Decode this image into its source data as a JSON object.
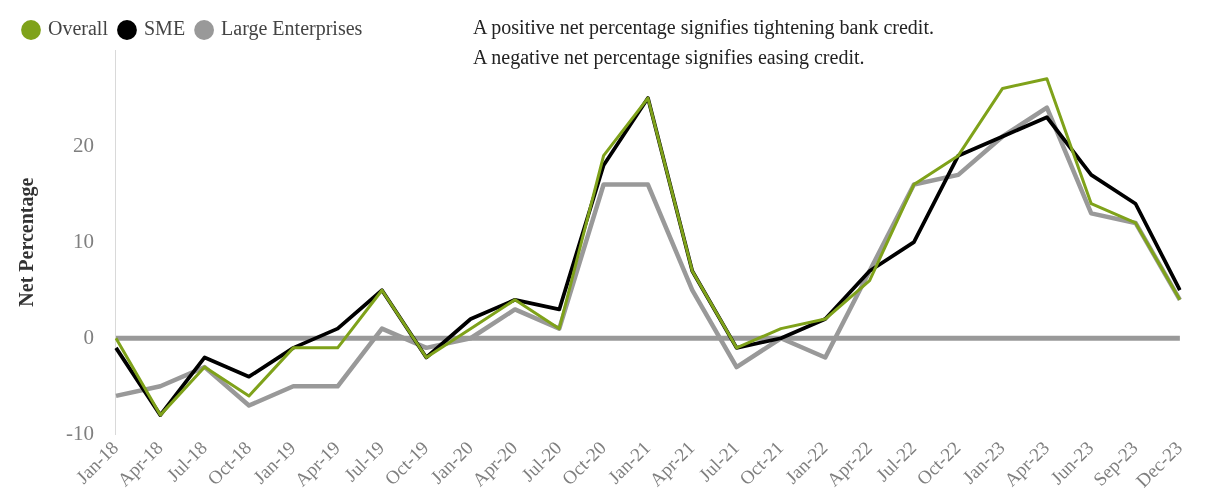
{
  "chart_data": {
    "type": "line",
    "ylabel": "Net Percentage",
    "annotations": [
      "A positive net percentage signifies tightening bank credit.",
      "A negative net percentage signifies easing credit."
    ],
    "categories": [
      "Jan-18",
      "Apr-18",
      "Jul-18",
      "Oct-18",
      "Jan-19",
      "Apr-19",
      "Jul-19",
      "Oct-19",
      "Jan-20",
      "Apr-20",
      "Jul-20",
      "Oct-20",
      "Jan-21",
      "Apr-21",
      "Jul-21",
      "Oct-21",
      "Jan-22",
      "Apr-22",
      "Jul-22",
      "Oct-22",
      "Jan-23",
      "Apr-23",
      "Jun-23",
      "Sep-23",
      "Dec-23"
    ],
    "series": [
      {
        "name": "Overall",
        "color": "#7fa21a",
        "values": [
          0,
          -8,
          -3,
          -6,
          -1,
          -1,
          5,
          -2,
          1,
          4,
          1,
          19,
          25,
          7,
          -1,
          1,
          2,
          6,
          16,
          19,
          26,
          27,
          14,
          12,
          4
        ]
      },
      {
        "name": "SME",
        "color": "#000000",
        "values": [
          -1,
          -8,
          -2,
          -4,
          -1,
          1,
          5,
          -2,
          2,
          4,
          3,
          18,
          25,
          7,
          -1,
          0,
          2,
          7,
          10,
          19,
          21,
          23,
          17,
          14,
          5
        ]
      },
      {
        "name": "Large Enterprises",
        "color": "#999999",
        "values": [
          -6,
          -5,
          -3,
          -7,
          -5,
          -5,
          1,
          -1,
          0,
          3,
          1,
          16,
          16,
          5,
          -3,
          0,
          -2,
          7,
          16,
          17,
          21,
          24,
          13,
          12,
          4
        ]
      }
    ],
    "ylim": [
      -10,
      30
    ],
    "yticks": [
      -10,
      0,
      10,
      20
    ],
    "grid": false,
    "legend": "top left",
    "marker": "none",
    "line_style": "solid",
    "ref_lines": [
      {
        "axis": "y",
        "value": 0,
        "color": "#999999"
      }
    ]
  }
}
